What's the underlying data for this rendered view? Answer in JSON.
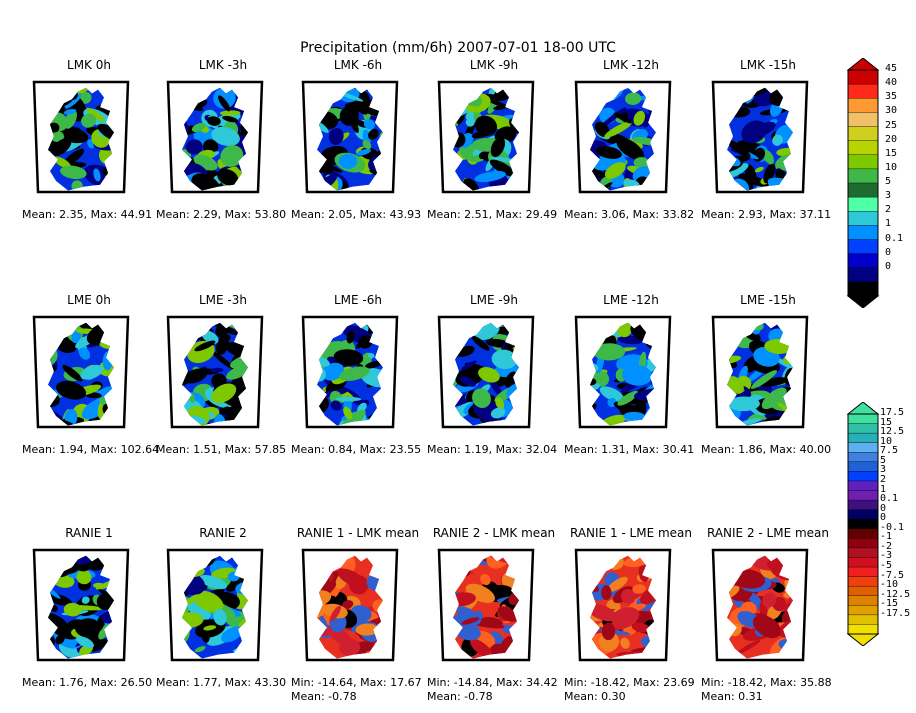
{
  "title": "Precipitation (mm/6h) 2007-07-01 18-00 UTC",
  "chart_data": [
    {
      "type": "heatmap",
      "title": "LMK 0h",
      "stats": "Mean: 2.35, Max: 44.91",
      "mean": 2.35,
      "max": 44.91
    },
    {
      "type": "heatmap",
      "title": "LMK -3h",
      "stats": "Mean: 2.29, Max: 53.80",
      "mean": 2.29,
      "max": 53.8
    },
    {
      "type": "heatmap",
      "title": "LMK -6h",
      "stats": "Mean: 2.05, Max: 43.93",
      "mean": 2.05,
      "max": 43.93
    },
    {
      "type": "heatmap",
      "title": "LMK -9h",
      "stats": "Mean: 2.51, Max: 29.49",
      "mean": 2.51,
      "max": 29.49
    },
    {
      "type": "heatmap",
      "title": "LMK -12h",
      "stats": "Mean: 3.06, Max: 33.82",
      "mean": 3.06,
      "max": 33.82
    },
    {
      "type": "heatmap",
      "title": "LMK -15h",
      "stats": "Mean: 2.93, Max: 37.11",
      "mean": 2.93,
      "max": 37.11
    },
    {
      "type": "heatmap",
      "title": "LME 0h",
      "stats": "Mean: 1.94, Max: 102.64",
      "mean": 1.94,
      "max": 102.64
    },
    {
      "type": "heatmap",
      "title": "LME -3h",
      "stats": "Mean: 1.51, Max: 57.85",
      "mean": 1.51,
      "max": 57.85
    },
    {
      "type": "heatmap",
      "title": "LME -6h",
      "stats": "Mean: 0.84, Max: 23.55",
      "mean": 0.84,
      "max": 23.55
    },
    {
      "type": "heatmap",
      "title": "LME -9h",
      "stats": "Mean: 1.19, Max: 32.04",
      "mean": 1.19,
      "max": 32.04
    },
    {
      "type": "heatmap",
      "title": "LME -12h",
      "stats": "Mean: 1.31, Max: 30.41",
      "mean": 1.31,
      "max": 30.41
    },
    {
      "type": "heatmap",
      "title": "LME -15h",
      "stats": "Mean: 1.86, Max: 40.00",
      "mean": 1.86,
      "max": 40.0
    },
    {
      "type": "heatmap",
      "title": "RANIE 1",
      "stats": "Mean: 1.76, Max: 26.50",
      "mean": 1.76,
      "max": 26.5
    },
    {
      "type": "heatmap",
      "title": "RANIE 2",
      "stats": "Mean: 1.77, Max: 43.30",
      "mean": 1.77,
      "max": 43.3
    },
    {
      "type": "heatmap",
      "title": "RANIE 1 - LMK mean",
      "stats": "Min: -14.64, Max: 17.67",
      "stats2": "Mean: -0.78",
      "min": -14.64,
      "max": 17.67,
      "mean": -0.78
    },
    {
      "type": "heatmap",
      "title": "RANIE 2 - LMK mean",
      "stats": "Min: -14.84, Max: 34.42",
      "stats2": "Mean: -0.78",
      "min": -14.84,
      "max": 34.42,
      "mean": -0.78
    },
    {
      "type": "heatmap",
      "title": "RANIE 1 - LME mean",
      "stats": "Min: -18.42, Max: 23.69",
      "stats2": "Mean: 0.30",
      "min": -18.42,
      "max": 23.69,
      "mean": 0.3
    },
    {
      "type": "heatmap",
      "title": "RANIE 2 - LME mean",
      "stats": "Min: -18.42, Max: 35.88",
      "stats2": "Mean: 0.31",
      "min": -18.42,
      "max": 35.88,
      "mean": 0.31
    }
  ],
  "colorbar_precip": {
    "labels": [
      "45",
      "40",
      "35",
      "30",
      "25",
      "20",
      "15",
      "10",
      "5",
      "3",
      "2",
      "1",
      "0.1",
      "0",
      "0"
    ],
    "colors": [
      "#cc0000",
      "#ff2a1a",
      "#ff9933",
      "#f2c069",
      "#cfcf20",
      "#b8d400",
      "#7ec800",
      "#3fb84a",
      "#1e6b30",
      "#4dffa6",
      "#2ec8d8",
      "#0090ff",
      "#0040ff",
      "#0000c8",
      "#000080",
      "#000000"
    ]
  },
  "colorbar_diff": {
    "labels": [
      "17.5",
      "15",
      "12.5",
      "10",
      "7.5",
      "5",
      "3",
      "2",
      "1",
      "0.1",
      "0",
      "0",
      "-0.1",
      "-1",
      "-2",
      "-3",
      "-5",
      "-7.5",
      "-10",
      "-12.5",
      "-15",
      "-17.5"
    ],
    "colors": [
      "#40e0a0",
      "#30c0a8",
      "#28b0b8",
      "#60b0f0",
      "#4080e0",
      "#2060d8",
      "#0040ff",
      "#6020c0",
      "#7020b0",
      "#401080",
      "#000060",
      "#000000",
      "#600000",
      "#900010",
      "#b01020",
      "#d01020",
      "#f02020",
      "#f04010",
      "#e06000",
      "#e08000",
      "#e0a000",
      "#e0c000",
      "#f0e000"
    ]
  }
}
